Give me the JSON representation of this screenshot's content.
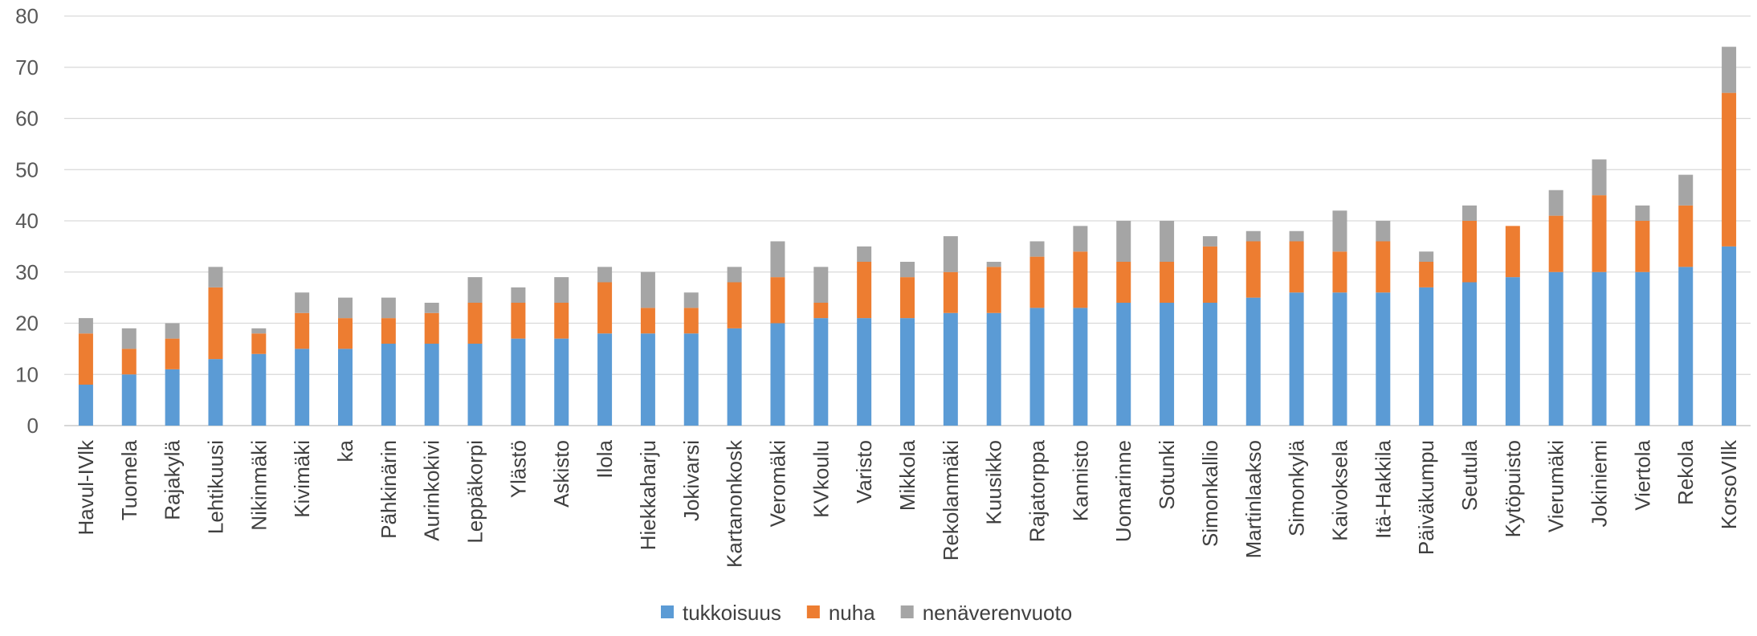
{
  "chart_data": {
    "type": "bar",
    "stacked": true,
    "categories": [
      "Havul-IVlk",
      "Tuomela",
      "Rajakylä",
      "Lehtikuusi",
      "Nikinmäki",
      "Kivimäki",
      "ka",
      "Pähkinärin",
      "Aurinkokivi",
      "Leppäkorpi",
      "Ylästö",
      "Askisto",
      "Ilola",
      "Hiekkaharju",
      "Jokivarsi",
      "Kartanonkosk",
      "Veromäki",
      "KVkoulu",
      "Varisto",
      "Mikkola",
      "Rekolanmäki",
      "Kuusikko",
      "Rajatorppa",
      "Kannisto",
      "Uomarinne",
      "Sotunki",
      "Simonkallio",
      "Martinlaakso",
      "Simonkylä",
      "Kaivoksela",
      "Itä-Hakkila",
      "Päiväkumpu",
      "Seutula",
      "Kytöpuisto",
      "Vierumäki",
      "Jokiniemi",
      "Viertola",
      "Rekola",
      "KorsoVIlk"
    ],
    "series": [
      {
        "name": "tukkoisuus",
        "color": "#5B9BD5",
        "values": [
          8,
          10,
          11,
          13,
          14,
          15,
          15,
          16,
          16,
          16,
          17,
          17,
          18,
          18,
          18,
          19,
          20,
          21,
          21,
          21,
          22,
          22,
          23,
          23,
          24,
          24,
          24,
          25,
          26,
          26,
          26,
          27,
          28,
          29,
          30,
          30,
          30,
          31,
          35
        ]
      },
      {
        "name": "nuha",
        "color": "#ED7D31",
        "values": [
          10,
          5,
          6,
          14,
          4,
          7,
          6,
          5,
          6,
          8,
          7,
          7,
          10,
          5,
          5,
          9,
          9,
          3,
          11,
          8,
          8,
          9,
          10,
          11,
          8,
          8,
          11,
          11,
          10,
          8,
          10,
          5,
          12,
          10,
          11,
          15,
          10,
          12,
          30
        ]
      },
      {
        "name": "nenäverenvuoto",
        "color": "#A5A5A5",
        "values": [
          3,
          4,
          3,
          4,
          1,
          4,
          4,
          4,
          2,
          5,
          3,
          5,
          3,
          7,
          3,
          3,
          7,
          7,
          3,
          3,
          7,
          1,
          3,
          5,
          8,
          8,
          2,
          2,
          2,
          8,
          4,
          2,
          3,
          0,
          5,
          7,
          3,
          6,
          9
        ]
      }
    ],
    "y_ticks": [
      "0",
      "10",
      "20",
      "30",
      "40",
      "50",
      "60",
      "70",
      "80"
    ],
    "ylim": [
      0,
      80
    ],
    "grid": true,
    "legend_position": "bottom"
  }
}
